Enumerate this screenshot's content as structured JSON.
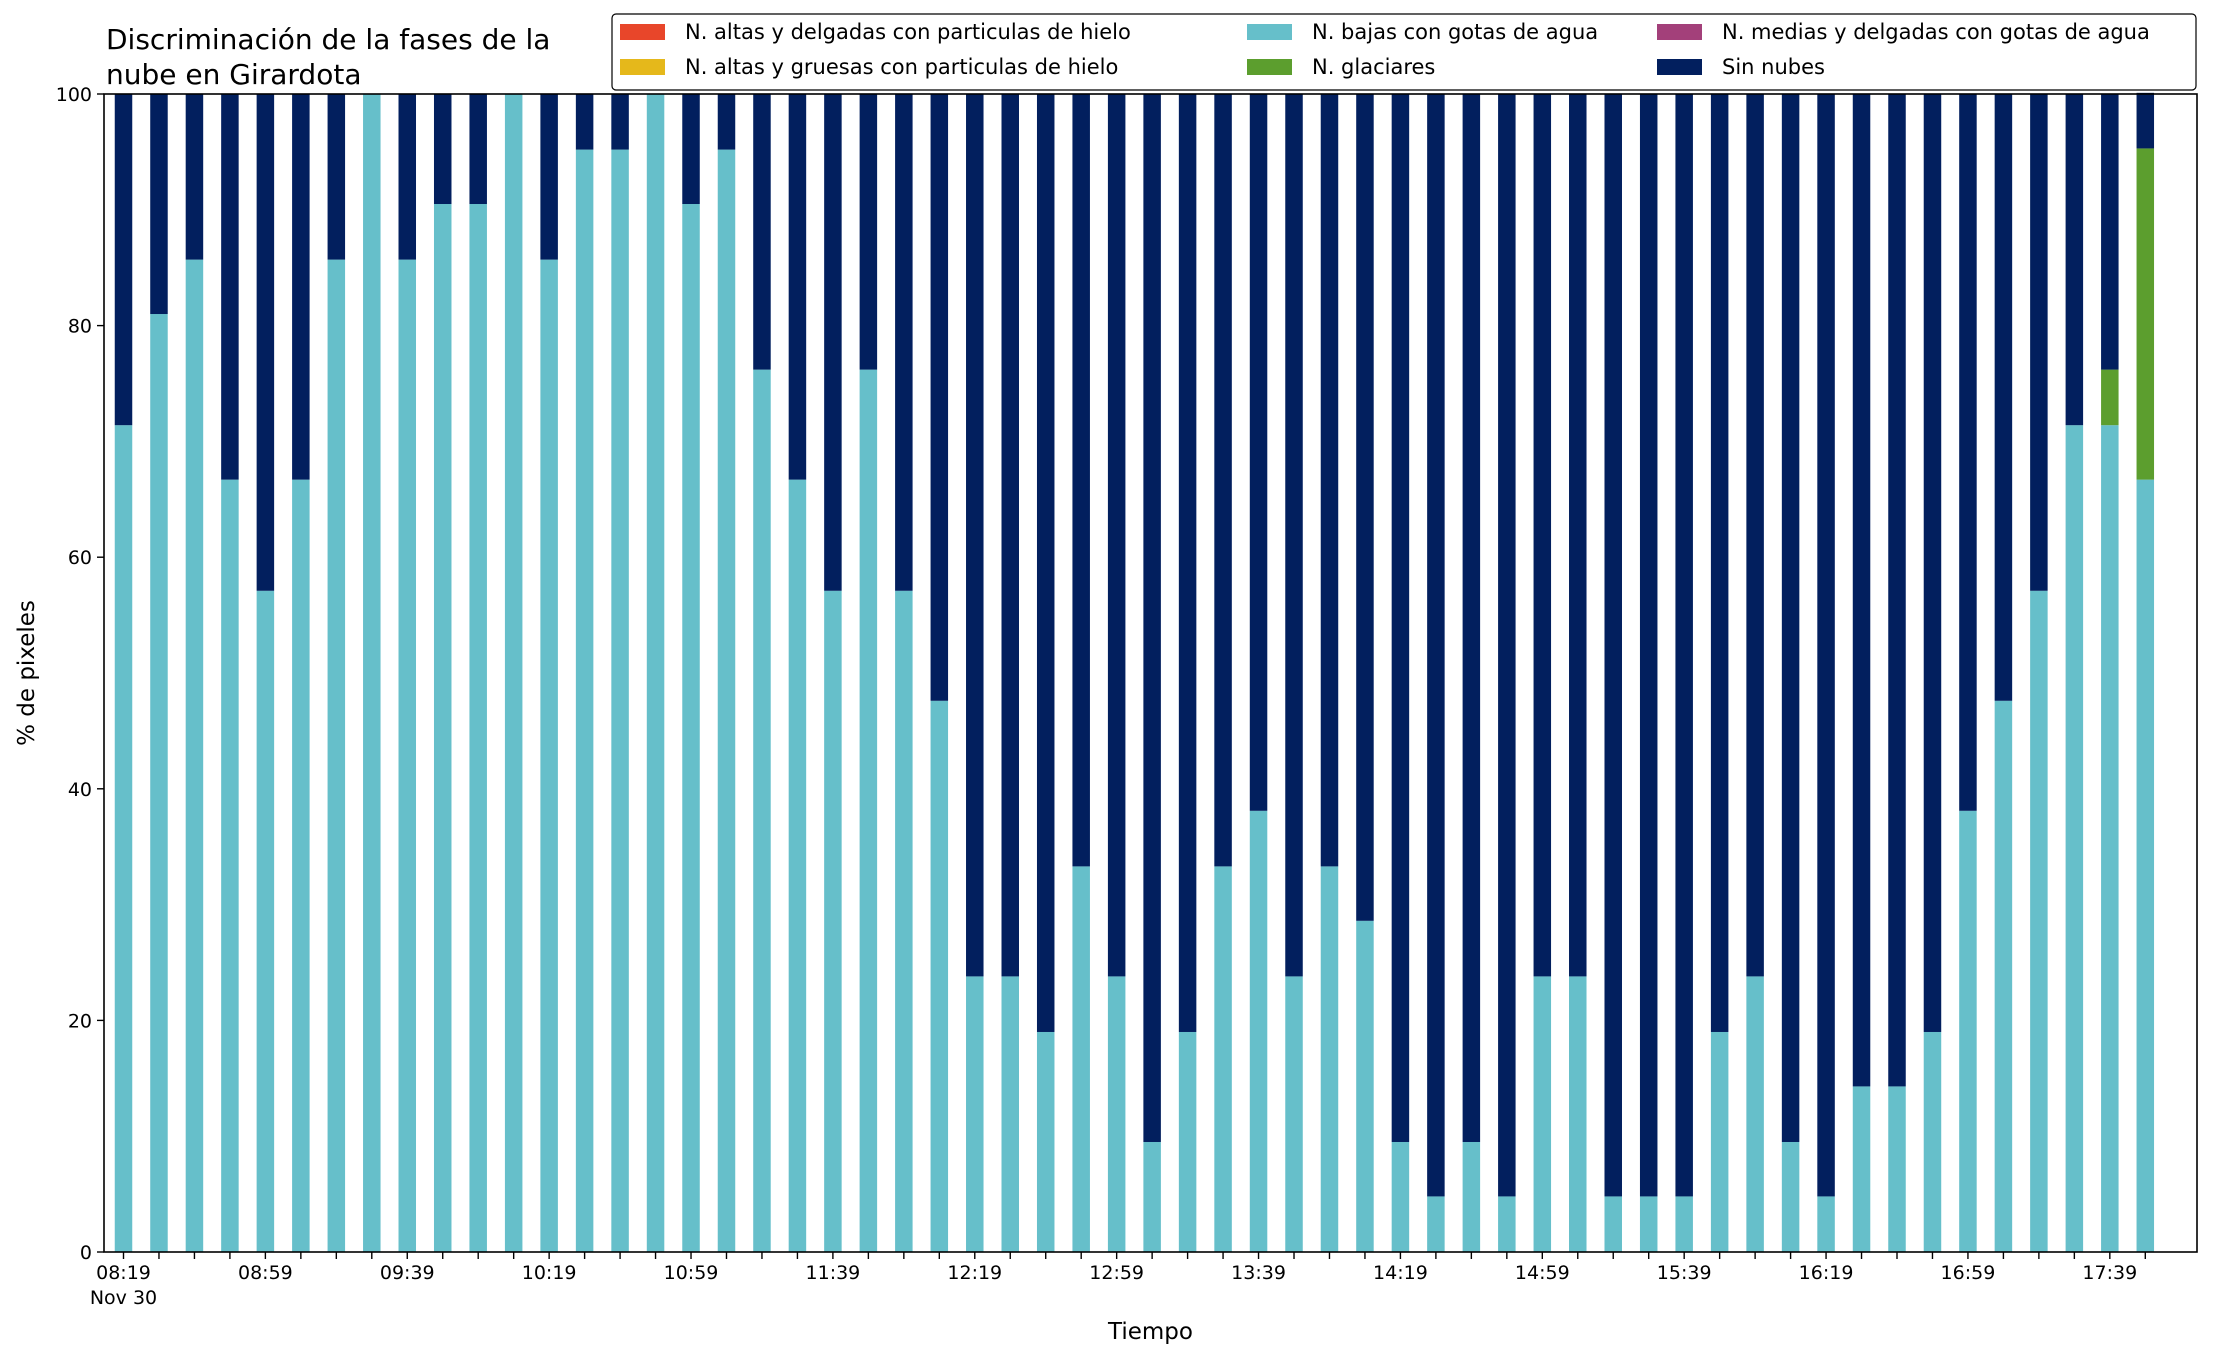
{
  "chart_data": {
    "type": "bar",
    "stacked": true,
    "title": "Discriminación de la fases de la\nnube en Girardota",
    "xlabel": "Tiempo",
    "ylabel": "% de pixeles",
    "ylim": [
      0,
      100
    ],
    "yticks": [
      0,
      20,
      40,
      60,
      80,
      100
    ],
    "legend_position": "top-right",
    "grid": false,
    "categories": [
      "08:19",
      "08:29",
      "08:39",
      "08:49",
      "08:59",
      "09:09",
      "09:19",
      "09:29",
      "09:39",
      "09:49",
      "09:59",
      "10:09",
      "10:19",
      "10:29",
      "10:39",
      "10:49",
      "10:59",
      "11:09",
      "11:19",
      "11:29",
      "11:39",
      "11:49",
      "11:59",
      "12:09",
      "12:19",
      "12:29",
      "12:39",
      "12:49",
      "12:59",
      "13:09",
      "13:19",
      "13:29",
      "13:39",
      "13:49",
      "13:59",
      "14:09",
      "14:19",
      "14:29",
      "14:39",
      "14:49",
      "14:59",
      "15:09",
      "15:19",
      "15:29",
      "15:39",
      "15:49",
      "15:59",
      "16:09",
      "16:19",
      "16:29",
      "16:39",
      "16:49",
      "16:59",
      "17:09",
      "17:19",
      "17:29",
      "17:39",
      "17:49"
    ],
    "tick_labels": [
      {
        "index": 0,
        "label": "08:19",
        "sublabel": "Nov 30"
      },
      {
        "index": 4,
        "label": "08:59"
      },
      {
        "index": 8,
        "label": "09:39"
      },
      {
        "index": 12,
        "label": "10:19"
      },
      {
        "index": 16,
        "label": "10:59"
      },
      {
        "index": 20,
        "label": "11:39"
      },
      {
        "index": 24,
        "label": "12:19"
      },
      {
        "index": 28,
        "label": "12:59"
      },
      {
        "index": 32,
        "label": "13:39"
      },
      {
        "index": 36,
        "label": "14:19"
      },
      {
        "index": 40,
        "label": "14:59"
      },
      {
        "index": 44,
        "label": "15:39"
      },
      {
        "index": 48,
        "label": "16:19"
      },
      {
        "index": 52,
        "label": "16:59"
      },
      {
        "index": 56,
        "label": "17:39"
      }
    ],
    "series": [
      {
        "name": "N. altas y delgadas con particulas de hielo",
        "color": "#e8462a",
        "values": [
          0,
          0,
          0,
          0,
          0,
          0,
          0,
          0,
          0,
          0,
          0,
          0,
          0,
          0,
          0,
          0,
          0,
          0,
          0,
          0,
          0,
          0,
          0,
          0,
          0,
          0,
          0,
          0,
          0,
          0,
          0,
          0,
          0,
          0,
          0,
          0,
          0,
          0,
          0,
          0,
          0,
          0,
          0,
          0,
          0,
          0,
          0,
          0,
          0,
          0,
          0,
          0,
          0,
          0,
          0,
          0,
          0,
          0
        ]
      },
      {
        "name": "N. altas y gruesas con particulas de hielo",
        "color": "#e5b81b",
        "values": [
          0,
          0,
          0,
          0,
          0,
          0,
          0,
          0,
          0,
          0,
          0,
          0,
          0,
          0,
          0,
          0,
          0,
          0,
          0,
          0,
          0,
          0,
          0,
          0,
          0,
          0,
          0,
          0,
          0,
          0,
          0,
          0,
          0,
          0,
          0,
          0,
          0,
          0,
          0,
          0,
          0,
          0,
          0,
          0,
          0,
          0,
          0,
          0,
          0,
          0,
          0,
          0,
          0,
          0,
          0,
          0,
          0,
          0
        ]
      },
      {
        "name": "N. bajas con gotas de agua",
        "color": "#66bfca",
        "values": [
          71.4,
          81,
          85.7,
          66.7,
          57.1,
          66.7,
          85.7,
          100,
          85.7,
          90.5,
          90.5,
          100,
          85.7,
          95.2,
          95.2,
          100,
          90.5,
          95.2,
          76.2,
          66.7,
          57.1,
          76.2,
          57.1,
          47.6,
          23.8,
          23.8,
          19,
          33.3,
          23.8,
          9.5,
          19,
          33.3,
          38.1,
          23.8,
          33.3,
          28.6,
          9.5,
          4.8,
          9.5,
          4.8,
          23.8,
          23.8,
          4.8,
          4.8,
          4.8,
          19,
          23.8,
          9.5,
          4.8,
          14.3,
          14.3,
          19,
          38.1,
          47.6,
          57.1,
          71.4,
          71.4,
          66.7
        ]
      },
      {
        "name": "N. glaciares",
        "color": "#5c9e2e",
        "values": [
          0,
          0,
          0,
          0,
          0,
          0,
          0,
          0,
          0,
          0,
          0,
          0,
          0,
          0,
          0,
          0,
          0,
          0,
          0,
          0,
          0,
          0,
          0,
          0,
          0,
          0,
          0,
          0,
          0,
          0,
          0,
          0,
          0,
          0,
          0,
          0,
          0,
          0,
          0,
          0,
          0,
          0,
          0,
          0,
          0,
          0,
          0,
          0,
          0,
          0,
          0,
          0,
          0,
          0,
          0,
          0,
          4.8,
          28.6
        ]
      },
      {
        "name": "N. medias y delgadas con gotas de agua",
        "color": "#a3407a",
        "values": [
          0,
          0,
          0,
          0,
          0,
          0,
          0,
          0,
          0,
          0,
          0,
          0,
          0,
          0,
          0,
          0,
          0,
          0,
          0,
          0,
          0,
          0,
          0,
          0,
          0,
          0,
          0,
          0,
          0,
          0,
          0,
          0,
          0,
          0,
          0,
          0,
          0,
          0,
          0,
          0,
          0,
          0,
          0,
          0,
          0,
          0,
          0,
          0,
          0,
          0,
          0,
          0,
          0,
          0,
          0,
          0,
          0,
          0
        ]
      },
      {
        "name": "Sin nubes",
        "color": "#021f5e",
        "values": [
          28.6,
          19,
          14.3,
          33.3,
          42.9,
          33.3,
          14.3,
          0,
          14.3,
          9.5,
          9.5,
          0,
          14.3,
          4.8,
          4.8,
          0,
          9.5,
          4.8,
          23.8,
          33.3,
          42.9,
          23.8,
          42.9,
          52.4,
          76.2,
          76.2,
          81,
          66.7,
          76.2,
          90.5,
          81,
          66.7,
          61.9,
          76.2,
          66.7,
          71.4,
          90.5,
          95.2,
          90.5,
          95.2,
          76.2,
          76.2,
          95.2,
          95.2,
          95.2,
          81,
          76.2,
          90.5,
          95.2,
          85.7,
          85.7,
          81,
          61.9,
          52.4,
          42.9,
          28.6,
          23.8,
          4.8
        ]
      }
    ],
    "legend_order": [
      0,
      1,
      2,
      3,
      4,
      5
    ]
  }
}
